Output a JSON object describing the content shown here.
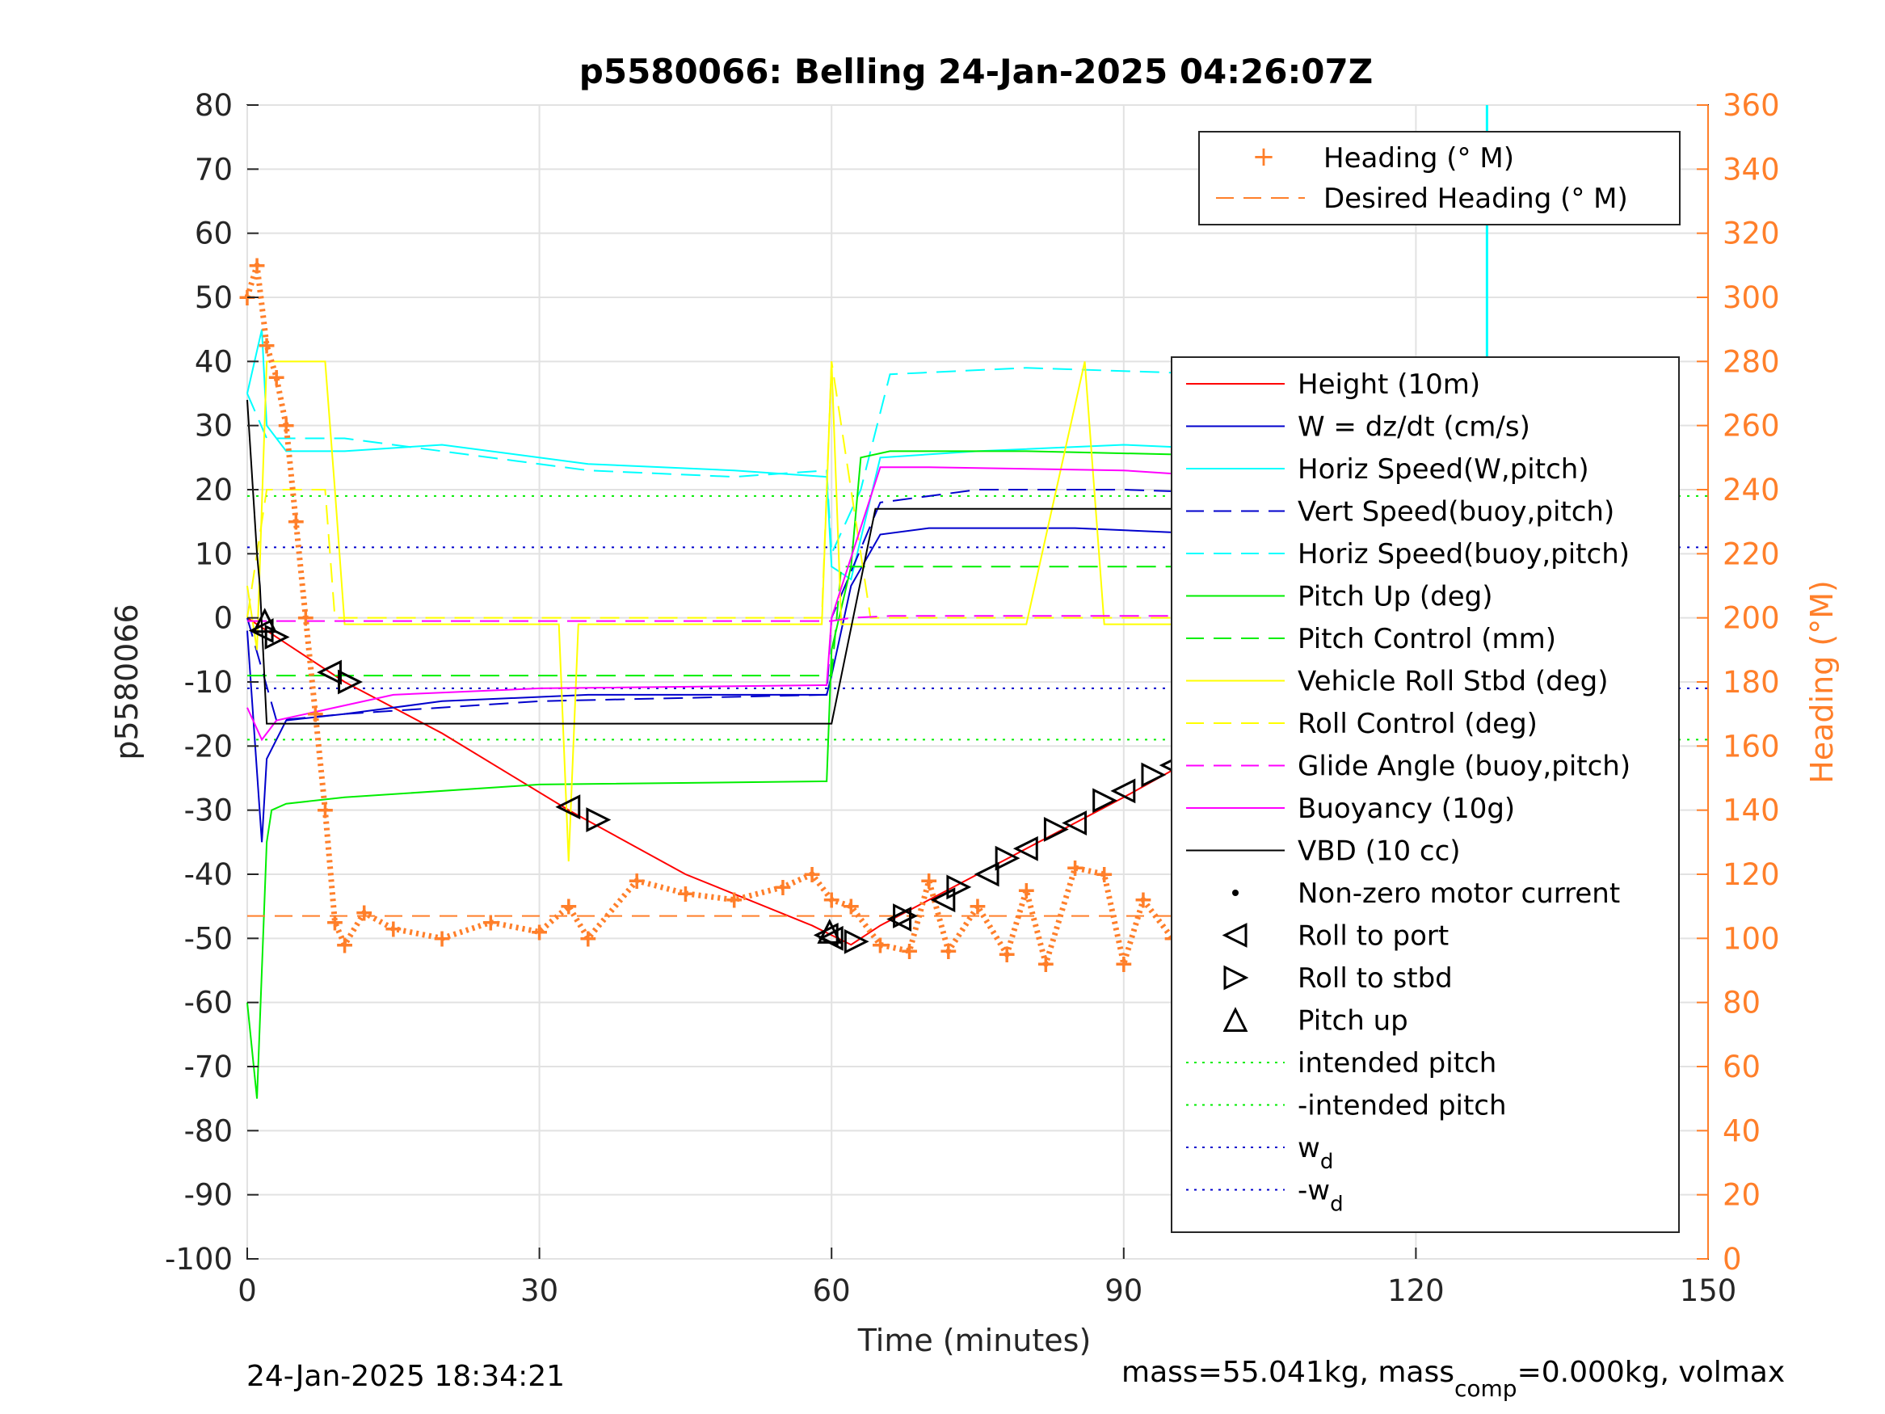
{
  "chart_data": {
    "type": "line",
    "title": "p5580066: Belling 24-Jan-2025 04:26:07Z",
    "xlabel": "Time (minutes)",
    "ylabel": "p5580066",
    "ylabel_right": "Heading (°M)",
    "xlim": [
      0,
      150
    ],
    "ylim": [
      -100,
      80
    ],
    "ylim_right": [
      0,
      360
    ],
    "x_ticks": [
      0,
      30,
      60,
      90,
      120,
      150
    ],
    "y_ticks": [
      80,
      70,
      60,
      50,
      40,
      30,
      20,
      10,
      0,
      -10,
      -20,
      -30,
      -40,
      -50,
      -60,
      -70,
      -80,
      -90,
      -100
    ],
    "y_ticks_right": [
      360,
      340,
      320,
      300,
      280,
      260,
      240,
      220,
      200,
      180,
      160,
      140,
      120,
      100,
      80,
      60,
      40,
      20,
      0
    ],
    "grid": true,
    "colors": {
      "heading": "#ff7f2a",
      "height": "#ff0000",
      "w": "#0000cc",
      "horiz_speed": "#00ffff",
      "pitch": "#00ee00",
      "roll": "#ffff00",
      "glide": "#ff00ff",
      "vbd": "#000000"
    },
    "legend_heading": {
      "placement": "top-right",
      "entries": [
        "Heading (° M)",
        "Desired Heading (° M)"
      ]
    },
    "legend_main": {
      "placement": "right",
      "entries": [
        "Height (10m)",
        "W = dz/dt (cm/s)",
        "Horiz Speed(W,pitch)",
        "Vert Speed(buoy,pitch)",
        "Horiz Speed(buoy,pitch)",
        "Pitch Up (deg)",
        "Pitch Control (mm)",
        "Vehicle Roll Stbd (deg)",
        "Roll Control (deg)",
        "Glide Angle (buoy,pitch)",
        "Buoyancy (10g)",
        "VBD (10 cc)",
        "Non-zero motor current",
        "Roll to port",
        "Roll to stbd",
        "Pitch up",
        "intended pitch",
        "-intended pitch",
        "w",
        "-w"
      ],
      "subscript": "d"
    },
    "series": [
      {
        "name": "Height (10m)",
        "x": [
          0,
          2,
          10,
          20,
          33,
          45,
          58,
          60,
          62,
          65,
          75,
          90,
          103,
          110,
          120,
          127.5
        ],
        "y": [
          0,
          -2,
          -10,
          -18,
          -30,
          -40,
          -48,
          -49.5,
          -51,
          -48,
          -40,
          -28,
          -17,
          -12,
          -5,
          0
        ]
      },
      {
        "name": "W = dz/dt (cm/s)",
        "x": [
          0,
          1.5,
          2,
          4,
          10,
          20,
          35,
          45,
          59.5,
          60,
          62,
          65,
          70,
          85,
          100,
          112,
          123
        ],
        "y": [
          -2,
          -35,
          -22,
          -16,
          -15,
          -13,
          -12,
          -12,
          -12,
          -9,
          5,
          13,
          14,
          14,
          13,
          12,
          11
        ]
      },
      {
        "name": "Horiz Speed(W,pitch)",
        "x": [
          0,
          1.5,
          2,
          4,
          10,
          20,
          35,
          50,
          59.5,
          60,
          62,
          65,
          75,
          90,
          105,
          115,
          122
        ],
        "y": [
          35,
          45,
          30,
          26,
          26,
          27,
          24,
          23,
          22,
          8,
          6,
          25,
          26,
          27,
          26,
          24,
          23
        ]
      },
      {
        "name": "Vert Speed(buoy,pitch)",
        "x": [
          0,
          3,
          10,
          30,
          59.5,
          60,
          65,
          75,
          90,
          110,
          123
        ],
        "y": [
          0,
          -16,
          -15,
          -13,
          -12,
          0,
          18,
          20,
          20,
          19,
          18
        ]
      },
      {
        "name": "Horiz Speed(buoy,pitch)",
        "x": [
          0,
          2,
          10,
          20,
          35,
          50,
          59.5,
          60,
          63,
          66,
          80,
          100,
          120
        ],
        "y": [
          35,
          28,
          28,
          26,
          23,
          22,
          23,
          10,
          20,
          38,
          39,
          38,
          37
        ]
      },
      {
        "name": "Pitch Up (deg)",
        "x": [
          0,
          1,
          2,
          2.5,
          4,
          10,
          30,
          59.5,
          60,
          62,
          63,
          66,
          80,
          110,
          125
        ],
        "y": [
          -60,
          -75,
          -35,
          -30,
          -29,
          -28,
          -26,
          -25.5,
          -5,
          8,
          25,
          26,
          26,
          25,
          24
        ]
      },
      {
        "name": "Pitch Control (mm)",
        "x": [
          0,
          4,
          60,
          61,
          66,
          125
        ],
        "y": [
          -9,
          -9,
          -9,
          8,
          8,
          8
        ]
      },
      {
        "name": "Vehicle Roll Stbd (deg)",
        "x": [
          0,
          1,
          2,
          3,
          4,
          8,
          9,
          10,
          20,
          30,
          32,
          33,
          34,
          40,
          59,
          60,
          61,
          62,
          64,
          70,
          80,
          86,
          88,
          95,
          100,
          105,
          110,
          115,
          120,
          125
        ],
        "y": [
          5,
          -5,
          40,
          40,
          40,
          40,
          20,
          -1,
          -1,
          -1,
          -1,
          -38,
          -1,
          -1,
          -1,
          40,
          -1,
          -1,
          -1,
          -1,
          -1,
          40,
          -1,
          -1,
          -1,
          40,
          -1,
          -1,
          -1,
          20
        ]
      },
      {
        "name": "Roll Control (deg)",
        "x": [
          0,
          2,
          3,
          8,
          9,
          59,
          60,
          64,
          70,
          80,
          90,
          100,
          110,
          120,
          126
        ],
        "y": [
          0,
          20,
          20,
          20,
          0,
          0,
          40,
          0,
          0,
          0,
          0,
          0,
          0,
          0,
          0
        ]
      },
      {
        "name": "Glide Angle (buoy,pitch)",
        "x": [
          0,
          3,
          60,
          62,
          66,
          126
        ],
        "y": [
          -0.5,
          -0.5,
          -0.5,
          0,
          0.3,
          0.3
        ]
      },
      {
        "name": "Buoyancy (10g)",
        "x": [
          0,
          1.5,
          3,
          6,
          15,
          30,
          59.5,
          60,
          65,
          70,
          90,
          110,
          125
        ],
        "y": [
          -14,
          -19,
          -16,
          -15,
          -12,
          -11,
          -10.5,
          0,
          23.5,
          23.5,
          23,
          21,
          19
        ]
      },
      {
        "name": "VBD (10 cc)",
        "x": [
          0,
          1,
          1.3,
          2,
          59.5,
          60,
          64.5,
          65,
          115,
          125,
          126
        ],
        "y": [
          34,
          10,
          5,
          -16.5,
          -16.5,
          -16.5,
          17,
          17,
          17,
          22,
          24
        ]
      },
      {
        "name": "Heading (° M)",
        "x": [
          0,
          1,
          2,
          3,
          4,
          5,
          6,
          7,
          8,
          9,
          10,
          12,
          15,
          20,
          25,
          30,
          33,
          35,
          40,
          45,
          50,
          55,
          58,
          60,
          62,
          65,
          68,
          70,
          72,
          75,
          78,
          80,
          82,
          85,
          88,
          90,
          92,
          95,
          98,
          100,
          103,
          105,
          110,
          115,
          118,
          120,
          123,
          125,
          127
        ],
        "y": [
          300,
          310,
          285,
          275,
          260,
          230,
          200,
          170,
          140,
          105,
          98,
          108,
          103,
          100,
          105,
          102,
          110,
          100,
          118,
          114,
          112,
          116,
          120,
          112,
          110,
          98,
          96,
          118,
          96,
          110,
          95,
          115,
          92,
          122,
          120,
          92,
          112,
          100,
          112,
          96,
          110,
          116,
          108,
          103,
          98,
          118,
          108,
          130,
          105
        ]
      },
      {
        "name": "Desired Heading (° M)",
        "x": [
          0,
          127
        ],
        "y": [
          107,
          107
        ]
      }
    ],
    "reference_lines": [
      {
        "name": "intended pitch",
        "y": 19
      },
      {
        "name": "-intended pitch",
        "y": -19
      },
      {
        "name": "w",
        "y": 11
      },
      {
        "name": "-w",
        "y": -11
      }
    ],
    "markers": {
      "roll_to_port": {
        "x": [
          1.5,
          8.5,
          33,
          59.5,
          60,
          67,
          71.5,
          76,
          80,
          85,
          90,
          95,
          100,
          108,
          112,
          117,
          122,
          127
        ],
        "y": [
          -2,
          -8.5,
          -29.5,
          -49.5,
          -50,
          -47,
          -44,
          -40,
          -36,
          -32,
          -27,
          -23,
          -18,
          -13.5,
          -10,
          -6,
          -3,
          0
        ]
      },
      "roll_to_stbd": {
        "x": [
          3,
          10.5,
          36,
          62.5,
          67.5,
          73,
          78,
          83,
          88,
          93,
          98,
          104,
          110,
          114,
          119,
          124
        ],
        "y": [
          -3,
          -10,
          -31.5,
          -50.5,
          -46.5,
          -42,
          -37.5,
          -33,
          -28.5,
          -24.5,
          -20,
          -16,
          -12,
          -9,
          -5,
          -1.5
        ]
      },
      "pitch_up": {
        "x": [
          1.8,
          59.8,
          127.5
        ],
        "y": [
          -0.5,
          -49,
          0
        ]
      }
    },
    "footer": {
      "left": "24-Jan-2025 18:34:21",
      "right_prefix": "mass=55.041kg, mass",
      "right_sub": "comp",
      "right_suffix": "=0.000kg, volmax"
    }
  }
}
